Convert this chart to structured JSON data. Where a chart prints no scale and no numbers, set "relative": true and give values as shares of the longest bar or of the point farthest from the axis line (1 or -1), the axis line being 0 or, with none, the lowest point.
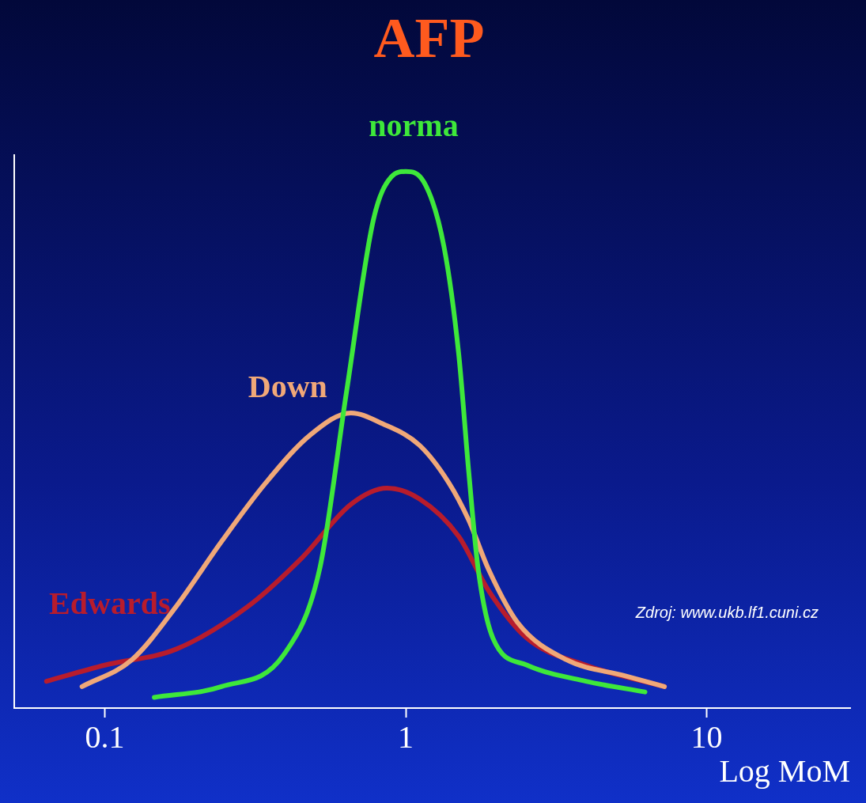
{
  "chart_data": {
    "type": "line",
    "title": "AFP",
    "xlabel": "Log MoM",
    "relative": true,
    "log": "x",
    "xlim": [
      0.05,
      30
    ],
    "xticks": [
      0.1,
      1,
      10
    ],
    "tick_labels": "x",
    "grid": false,
    "legend": false,
    "marker": "none",
    "line_style": "solid",
    "annotations": [
      "Zdroj: www.ukb.lf1.cuni.cz"
    ],
    "series": [
      {
        "name": "norma",
        "color": "#3ee83a",
        "x": [
          0.146,
          0.244,
          0.394,
          0.518,
          0.636,
          0.781,
          0.896,
          1,
          1.15,
          1.34,
          1.5,
          1.62,
          1.74,
          1.95,
          2.53,
          3.97,
          6.24
        ],
        "values": [
          0.02,
          0.04,
          0.1,
          0.26,
          0.59,
          0.91,
          0.99,
          1,
          0.98,
          0.86,
          0.66,
          0.44,
          0.26,
          0.13,
          0.08,
          0.05,
          0.03
        ]
      },
      {
        "name": "Down",
        "color": "#f0a878",
        "x": [
          0.084,
          0.123,
          0.173,
          0.244,
          0.343,
          0.484,
          0.658,
          0.837,
          1.11,
          1.39,
          1.62,
          1.88,
          2.35,
          3.42,
          5.37,
          7.24
        ],
        "values": [
          0.04,
          0.09,
          0.19,
          0.31,
          0.42,
          0.51,
          0.55,
          0.53,
          0.49,
          0.42,
          0.35,
          0.26,
          0.16,
          0.09,
          0.06,
          0.04
        ]
      },
      {
        "name": "Edwards",
        "color": "#b81c2c",
        "x": [
          0.064,
          0.1,
          0.173,
          0.3,
          0.452,
          0.658,
          0.866,
          1.11,
          1.5,
          1.88,
          2.53,
          3.97,
          7.24
        ],
        "values": [
          0.05,
          0.08,
          0.11,
          0.19,
          0.28,
          0.38,
          0.41,
          0.39,
          0.32,
          0.22,
          0.13,
          0.08,
          0.04
        ]
      }
    ]
  }
}
